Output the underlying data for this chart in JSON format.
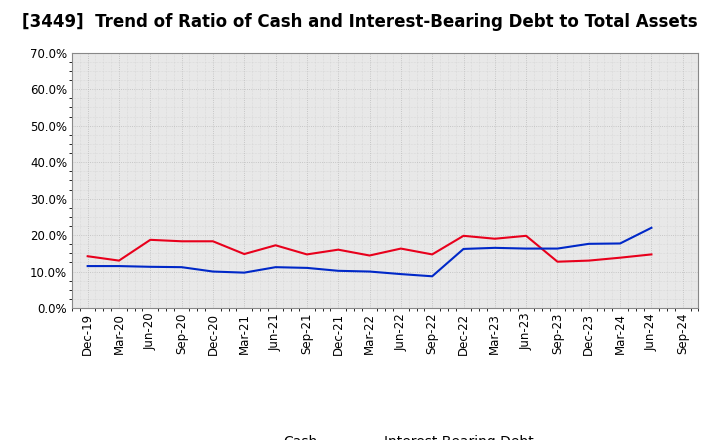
{
  "title": "[3449]  Trend of Ratio of Cash and Interest-Bearing Debt to Total Assets",
  "x_labels": [
    "Dec-19",
    "Mar-20",
    "Jun-20",
    "Sep-20",
    "Dec-20",
    "Mar-21",
    "Jun-21",
    "Sep-21",
    "Dec-21",
    "Mar-22",
    "Jun-22",
    "Sep-22",
    "Dec-22",
    "Mar-23",
    "Jun-23",
    "Sep-23",
    "Dec-23",
    "Mar-24",
    "Jun-24",
    "Sep-24"
  ],
  "cash": [
    0.142,
    0.13,
    0.187,
    0.183,
    0.183,
    0.148,
    0.172,
    0.147,
    0.16,
    0.144,
    0.163,
    0.147,
    0.198,
    0.19,
    0.198,
    0.127,
    0.13,
    0.138,
    0.147,
    null
  ],
  "debt": [
    0.115,
    0.115,
    0.113,
    0.112,
    0.1,
    0.097,
    0.112,
    0.11,
    0.102,
    0.1,
    0.093,
    0.087,
    0.162,
    0.165,
    0.163,
    0.163,
    0.176,
    0.177,
    0.22,
    null
  ],
  "cash_color": "#e8001c",
  "debt_color": "#0028c8",
  "ylim": [
    0.0,
    0.7
  ],
  "yticks": [
    0.0,
    0.1,
    0.2,
    0.3,
    0.4,
    0.5,
    0.6,
    0.7
  ],
  "background_color": "#ffffff",
  "plot_bg_color": "#e8e8e8",
  "grid_color": "#bbbbbb",
  "legend_cash": "Cash",
  "legend_debt": "Interest-Bearing Debt",
  "title_fontsize": 12,
  "tick_fontsize": 8.5,
  "legend_fontsize": 10
}
